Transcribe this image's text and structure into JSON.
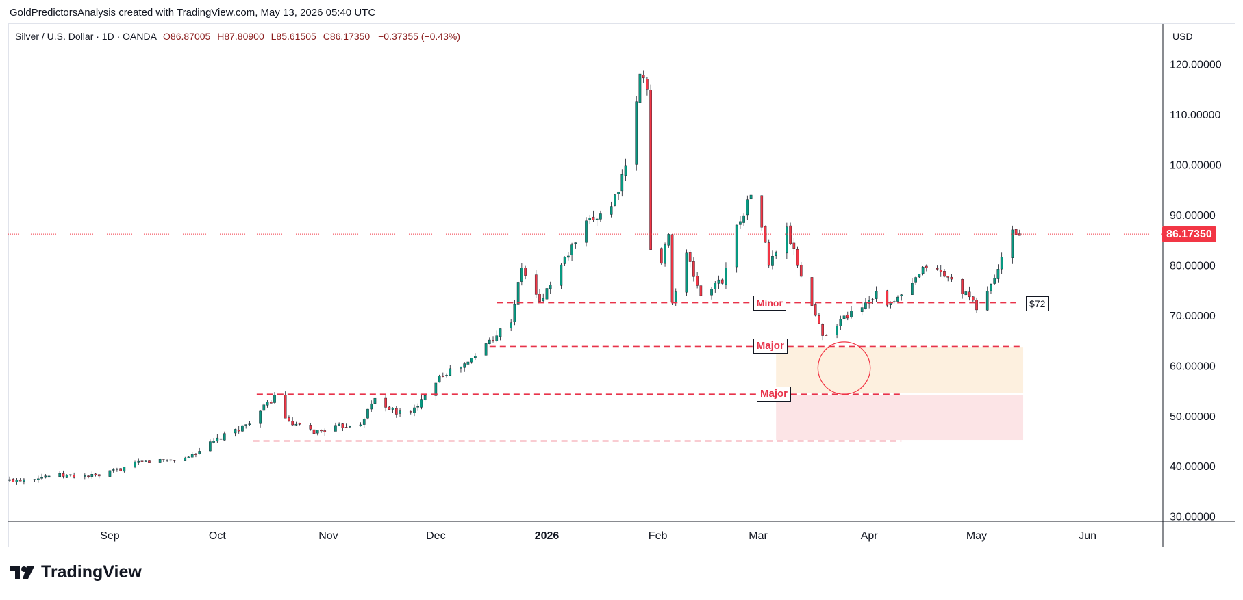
{
  "header": {
    "attribution": "GoldPredictorsAnalysis created with TradingView.com, May 13, 2026 05:40 UTC"
  },
  "legend": {
    "symbol": "Silver / U.S. Dollar · 1D · OANDA",
    "open": "O86.87005",
    "high": "H87.80900",
    "low": "L85.61505",
    "close": "C86.17350",
    "change": "−0.37355 (−0.43%)"
  },
  "currency": "USD",
  "brand": {
    "name": "TradingView",
    "logo_icon": "tradingview-logo-icon"
  },
  "colors": {
    "up": "#089981",
    "down": "#f23645",
    "level": "#e8334a",
    "zone_upper": "#fdf0df",
    "zone_lower": "#fce4e6"
  },
  "chart_data": {
    "type": "candlestick",
    "symbol": "Silver / U.S. Dollar",
    "timeframe": "1D",
    "y_axis": {
      "ticks": [
        30,
        40,
        50,
        60,
        70,
        80,
        90,
        100,
        110,
        120
      ],
      "tick_labels": [
        "30.00000",
        "40.00000",
        "50.00000",
        "60.00000",
        "70.00000",
        "80.00000",
        "90.00000",
        "100.00000",
        "110.00000",
        "120.00000"
      ],
      "range": [
        29,
        128
      ]
    },
    "x_axis": {
      "labels": [
        "Sep",
        "Oct",
        "Nov",
        "Dec",
        "2026",
        "Feb",
        "Mar",
        "Apr",
        "May",
        "Jun"
      ],
      "label_dates": [
        "2025-09-01",
        "2025-10-01",
        "2025-11-01",
        "2025-12-01",
        "2026-01-01",
        "2026-02-01",
        "2026-03-01",
        "2026-04-01",
        "2026-05-01",
        "2026-06-01"
      ],
      "range": [
        "2025-08-04",
        "2026-06-22"
      ]
    },
    "last_price": {
      "value": 86.1735,
      "label": "86.17350"
    },
    "levels": [
      {
        "name": "Minor",
        "price": 72.5,
        "start": "2025-12-18",
        "end": "2026-05-12",
        "label": "Minor",
        "label_date": "2026-02-28"
      },
      {
        "name": "Major upper",
        "price": 63.8,
        "start": "2025-12-16",
        "end": "2026-05-14",
        "label": "Major",
        "label_date": "2026-02-28"
      },
      {
        "name": "Major middle",
        "price": 54.3,
        "start": "2025-10-12",
        "end": "2026-04-10",
        "label": "Major",
        "label_date": "2026-03-01"
      },
      {
        "name": "Major lower",
        "price": 45.0,
        "start": "2025-10-11",
        "end": "2026-04-10",
        "label": "",
        "label_date": ""
      }
    ],
    "zones": [
      {
        "name": "upper zone",
        "start": "2026-03-06",
        "end": "2026-05-14",
        "top": 63.7,
        "bottom": 54.5
      },
      {
        "name": "lower zone",
        "start": "2026-03-06",
        "end": "2026-05-14",
        "top": 54.1,
        "bottom": 45.2
      }
    ],
    "circle": {
      "date": "2026-03-25",
      "price": 59.5,
      "radius_price": 5.2
    },
    "annotation": {
      "label": "$72",
      "date": "2026-05-14",
      "price": 72.5
    },
    "waypoints": [
      [
        "2025-08-04",
        37.1
      ],
      [
        "2025-08-15",
        38.1
      ],
      [
        "2025-08-29",
        38.0
      ],
      [
        "2025-09-10",
        40.8
      ],
      [
        "2025-09-22",
        41.5
      ],
      [
        "2025-10-01",
        45.2
      ],
      [
        "2025-10-09",
        48.2
      ],
      [
        "2025-10-15",
        52.3
      ],
      [
        "2025-10-17",
        53.8
      ],
      [
        "2025-10-21",
        48.5
      ],
      [
        "2025-10-28",
        46.8
      ],
      [
        "2025-11-04",
        47.8
      ],
      [
        "2025-11-10",
        48.6
      ],
      [
        "2025-11-14",
        53.5
      ],
      [
        "2025-11-20",
        50.5
      ],
      [
        "2025-11-26",
        51.5
      ],
      [
        "2025-11-28",
        54.5
      ],
      [
        "2025-12-02",
        58.0
      ],
      [
        "2025-12-10",
        60.5
      ],
      [
        "2025-12-16",
        65.0
      ],
      [
        "2025-12-22",
        69.0
      ],
      [
        "2025-12-25",
        79.5
      ],
      [
        "2025-12-30",
        72.5
      ],
      [
        "2026-01-05",
        80.0
      ],
      [
        "2026-01-12",
        88.0
      ],
      [
        "2026-01-19",
        92.0
      ],
      [
        "2026-01-23",
        99.0
      ],
      [
        "2026-01-27",
        117.5
      ],
      [
        "2026-01-29",
        116.0
      ],
      [
        "2026-01-30",
        83.0
      ],
      [
        "2026-02-02",
        80.0
      ],
      [
        "2026-02-04",
        87.0
      ],
      [
        "2026-02-05",
        72.5
      ],
      [
        "2026-02-09",
        82.0
      ],
      [
        "2026-02-13",
        74.0
      ],
      [
        "2026-02-19",
        77.0
      ],
      [
        "2026-02-23",
        87.5
      ],
      [
        "2026-02-27",
        94.0
      ],
      [
        "2026-03-02",
        88.0
      ],
      [
        "2026-03-04",
        80.0
      ],
      [
        "2026-03-09",
        87.0
      ],
      [
        "2026-03-13",
        78.0
      ],
      [
        "2026-03-19",
        66.0
      ],
      [
        "2026-03-24",
        69.0
      ],
      [
        "2026-03-30",
        72.0
      ],
      [
        "2026-04-03",
        74.5
      ],
      [
        "2026-04-07",
        72.0
      ],
      [
        "2026-04-13",
        76.0
      ],
      [
        "2026-04-17",
        80.0
      ],
      [
        "2026-04-22",
        78.0
      ],
      [
        "2026-04-27",
        75.0
      ],
      [
        "2026-05-01",
        71.5
      ],
      [
        "2026-05-05",
        76.0
      ],
      [
        "2026-05-08",
        81.0
      ],
      [
        "2026-05-11",
        86.5
      ],
      [
        "2026-05-13",
        86.2
      ]
    ]
  }
}
